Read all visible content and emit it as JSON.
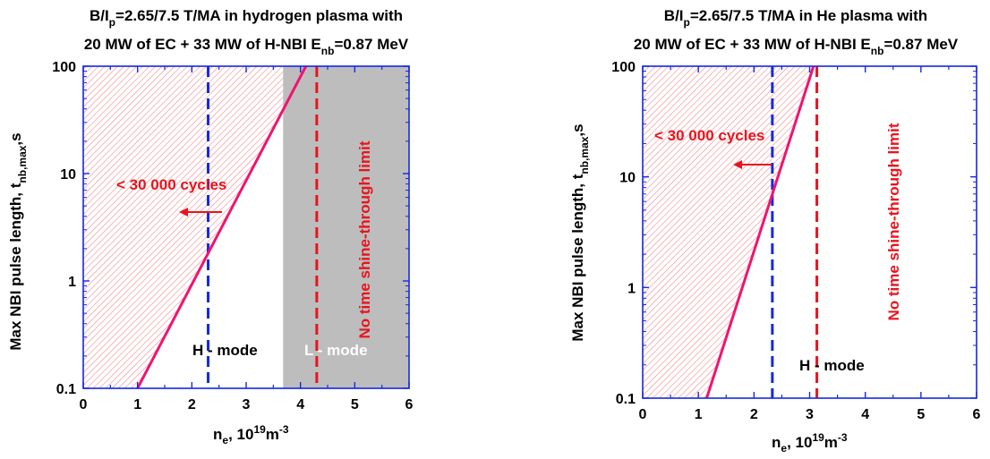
{
  "chart_data": [
    {
      "type": "line",
      "title_line1": "B/I p =2.65/7.5 T/MA in hydrogen plasma with",
      "title_line2": "20 MW of EC + 33 MW of H-NBI E nb =0.87 MeV",
      "title_parts": {
        "a": "B/I",
        "sub1": "p",
        "b": "=2.65/7.5 T/MA in hydrogen plasma with",
        "c": "20 MW of EC + 33 MW of H-NBI E",
        "sub2": "nb",
        "d": "=0.87 MeV"
      },
      "xlabel": {
        "main": "n",
        "sub": "e",
        "rest": ", 10",
        "sup1": "19",
        "unit": "m",
        "sup2": "-3"
      },
      "ylabel": {
        "main": "Max NBI pulse length, t",
        "sub": "nb,max",
        "rest": ",s"
      },
      "xlim": [
        0,
        6
      ],
      "ylim": [
        0.1,
        100
      ],
      "yscale": "log",
      "x_ticks": [
        "0",
        "1",
        "2",
        "3",
        "4",
        "5",
        "6"
      ],
      "y_ticks": [
        "0.1",
        "1",
        "10",
        "100"
      ],
      "series": [
        {
          "x": [
            1.0,
            4.1
          ],
          "y": [
            0.1,
            100
          ],
          "color": "#f0146e",
          "style": "solid"
        }
      ],
      "vlines": [
        {
          "x": 2.3,
          "color": "#1428e6",
          "style": "dashed"
        },
        {
          "x": 4.3,
          "color": "#e8141e",
          "style": "dashed"
        }
      ],
      "shaded_region_x": [
        3.68,
        6
      ],
      "shade_color": "#bdbdbd",
      "hatch_color": "#f48a8a",
      "annotations": {
        "cycles": "< 30 000 cycles",
        "hmode": "H - mode",
        "lmode": "L - mode",
        "noshine": "No time shine-through limit"
      }
    },
    {
      "type": "line",
      "title_parts": {
        "a": "B/I",
        "sub1": "p",
        "b": "=2.65/7.5 T/MA in He plasma with",
        "c": "20 MW of EC + 33 MW of H-NBI E",
        "sub2": "nb",
        "d": "=0.87 MeV"
      },
      "xlabel": {
        "main": "n",
        "sub": "e",
        "rest": ", 10",
        "sup1": "19",
        "unit": "m",
        "sup2": "-3"
      },
      "ylabel": {
        "main": "Max NBI pulse length, t",
        "sub": "nb,max",
        "rest": ",s"
      },
      "xlim": [
        0,
        6
      ],
      "ylim": [
        0.1,
        100
      ],
      "yscale": "log",
      "x_ticks": [
        "0",
        "1",
        "2",
        "3",
        "4",
        "5",
        "6"
      ],
      "y_ticks": [
        "0.1",
        "1",
        "10",
        "100"
      ],
      "series": [
        {
          "x": [
            1.15,
            3.07
          ],
          "y": [
            0.1,
            100
          ],
          "color": "#f0146e",
          "style": "solid"
        }
      ],
      "vlines": [
        {
          "x": 2.33,
          "color": "#1428e6",
          "style": "dashed"
        },
        {
          "x": 3.13,
          "color": "#e8141e",
          "style": "dashed"
        }
      ],
      "hatch_color": "#f48a8a",
      "annotations": {
        "cycles": "< 30 000 cycles",
        "hmode": "H - mode",
        "noshine": "No time shine-through limit"
      }
    }
  ]
}
